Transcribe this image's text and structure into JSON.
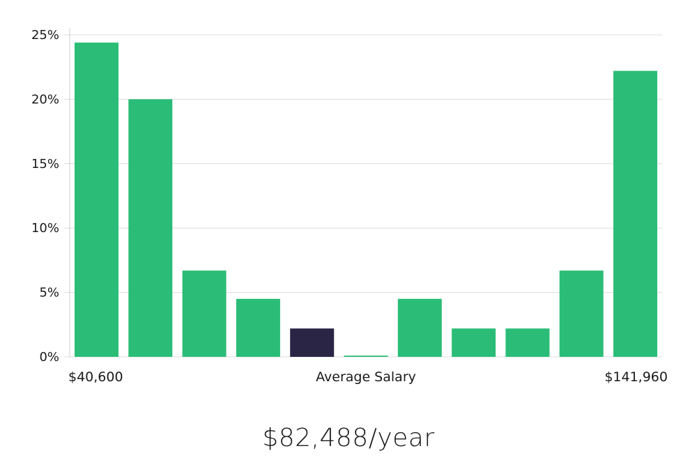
{
  "chart_data": {
    "type": "bar",
    "title": "",
    "xlabel": "Average Salary",
    "x_range_labels": {
      "min": "$40,600",
      "max": "$141,960"
    },
    "ylabel": "",
    "ylim": [
      0,
      25
    ],
    "y_ticks": [
      0,
      5,
      10,
      15,
      20,
      25
    ],
    "y_tick_format": "%",
    "grid": true,
    "values": [
      24.4,
      20.0,
      6.7,
      4.5,
      2.2,
      0.1,
      4.5,
      2.2,
      2.2,
      6.7,
      22.2
    ],
    "highlight_index": 4,
    "colors": {
      "bar": "#2bbd77",
      "highlight": "#2a2545"
    }
  },
  "salary_summary": "$82,488/year"
}
